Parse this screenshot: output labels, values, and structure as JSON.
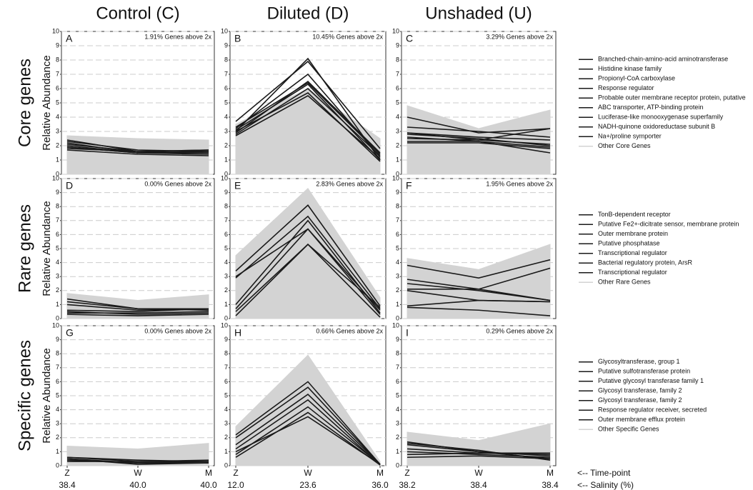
{
  "chart_data": {
    "type": "line",
    "ylabel": "Relative Abundance",
    "ylim": [
      0,
      10
    ],
    "yticks": [
      0,
      1,
      2,
      3,
      4,
      5,
      6,
      7,
      8,
      9,
      10
    ],
    "grid": true,
    "line_color": "#1a1a1a",
    "other_color": "#d3d3d3",
    "time_points": [
      "Z",
      "W",
      "M"
    ],
    "time_label": "<-- Time-point",
    "salinity_label": "<-- Salinity (%)",
    "columns": [
      {
        "title": "Control (C)",
        "salinity": [
          "38.4",
          "40.0",
          "40.0"
        ]
      },
      {
        "title": "Diluted (D)",
        "salinity": [
          "12.0",
          "23.6",
          "36.0"
        ]
      },
      {
        "title": "Unshaded (U)",
        "salinity": [
          "38.2",
          "38.4",
          "38.4"
        ]
      }
    ],
    "rows": [
      {
        "label": "Core genes",
        "legend": [
          "Branched-chain-amino-acid aminotransferase",
          "Histidine kinase family",
          "Propionyl-CoA carboxylase",
          "Response regulator",
          "Probable outer membrane receptor protein, putative",
          "ABC transporter, ATP-binding protein",
          "Luciferase-like monooxygenase superfamily",
          "NADH-quinone oxidoreductase subunit B",
          "Na+/proline symporter"
        ],
        "other_name": "Other Core Genes",
        "panels": [
          {
            "letter": "A",
            "annotation": "1.91% Genes above 2x",
            "other": [
              2.7,
              2.5,
              2.4
            ],
            "lines": [
              [
                2.4,
                1.6,
                1.7
              ],
              [
                2.2,
                1.5,
                1.6
              ],
              [
                2.0,
                1.5,
                1.5
              ],
              [
                1.9,
                1.5,
                1.4
              ],
              [
                1.8,
                1.6,
                1.7
              ],
              [
                2.3,
                1.7,
                1.6
              ],
              [
                1.7,
                1.4,
                1.3
              ],
              [
                2.1,
                1.6,
                1.5
              ],
              [
                1.9,
                1.5,
                1.6
              ]
            ]
          },
          {
            "letter": "B",
            "annotation": "10.45% Genes above 2x",
            "other": [
              3.5,
              6.0,
              2.5
            ],
            "lines": [
              [
                3.0,
                8.1,
                1.0
              ],
              [
                3.7,
                7.9,
                1.8
              ],
              [
                3.2,
                7.0,
                1.2
              ],
              [
                2.9,
                6.5,
                1.5
              ],
              [
                3.1,
                6.3,
                1.0
              ],
              [
                2.8,
                6.0,
                1.3
              ],
              [
                3.0,
                5.7,
                0.9
              ],
              [
                2.7,
                5.5,
                1.1
              ],
              [
                3.3,
                6.4,
                1.4
              ]
            ]
          },
          {
            "letter": "C",
            "annotation": "3.29% Genes above 2x",
            "other": [
              4.8,
              3.2,
              4.5
            ],
            "lines": [
              [
                4.0,
                2.9,
                3.2
              ],
              [
                3.3,
                3.0,
                2.6
              ],
              [
                2.9,
                2.4,
                3.2
              ],
              [
                2.8,
                2.5,
                2.0
              ],
              [
                2.6,
                2.3,
                1.5
              ],
              [
                2.3,
                2.3,
                1.9
              ],
              [
                2.2,
                2.2,
                1.8
              ],
              [
                2.9,
                2.6,
                2.4
              ],
              [
                2.5,
                2.4,
                2.1
              ]
            ]
          }
        ]
      },
      {
        "label": "Rare genes",
        "legend": [
          "TonB-dependent receptor",
          "Putative Fe2+-dicitrate sensor, membrane protein",
          "Outer membrane protein",
          "Putative phosphatase",
          "Transcriptional regulator",
          "Bacterial regulatory protein, ArsR",
          "Transcriptional regulator"
        ],
        "other_name": "Other Rare Genes",
        "panels": [
          {
            "letter": "D",
            "annotation": "0.00% Genes above 2x",
            "other": [
              1.8,
              1.3,
              1.7
            ],
            "lines": [
              [
                1.4,
                0.7,
                0.7
              ],
              [
                1.0,
                0.6,
                0.7
              ],
              [
                0.6,
                0.5,
                0.7
              ],
              [
                0.5,
                0.3,
                0.4
              ],
              [
                0.4,
                0.4,
                0.5
              ],
              [
                0.3,
                0.2,
                0.3
              ],
              [
                1.2,
                0.7,
                0.6
              ]
            ]
          },
          {
            "letter": "E",
            "annotation": "2.83% Genes above 2x",
            "other": [
              4.5,
              9.3,
              1.5
            ],
            "lines": [
              [
                3.4,
                8.1,
                0.9
              ],
              [
                2.9,
                7.3,
                0.7
              ],
              [
                1.0,
                7.0,
                0.4
              ],
              [
                0.7,
                6.4,
                0.6
              ],
              [
                3.0,
                6.4,
                0.3
              ],
              [
                0.2,
                5.3,
                0.1
              ],
              [
                0.5,
                5.3,
                0.8
              ]
            ]
          },
          {
            "letter": "F",
            "annotation": "1.95% Genes above 2x",
            "other": [
              4.3,
              3.5,
              5.3
            ],
            "lines": [
              [
                3.8,
                2.9,
                4.2
              ],
              [
                2.8,
                2.1,
                1.3
              ],
              [
                2.1,
                2.1,
                3.6
              ],
              [
                2.0,
                1.3,
                1.2
              ],
              [
                2.5,
                2.0,
                1.3
              ],
              [
                0.9,
                1.3,
                1.2
              ],
              [
                0.8,
                0.6,
                0.2
              ]
            ]
          }
        ]
      },
      {
        "label": "Specific genes",
        "legend": [
          "Glycosyltransferase, group 1",
          "Putative sulfotransferase protein",
          "Putative glycosyl transferase family 1",
          "Glycosyl transferase, family 2",
          "Glycosyl transferase, family 2",
          "Response regulator receiver, secreted",
          "Outer membrane efflux protein"
        ],
        "other_name": "Other Specific Genes",
        "panels": [
          {
            "letter": "G",
            "annotation": "0.00% Genes above 2x",
            "other": [
              1.4,
              1.2,
              1.6
            ],
            "lines": [
              [
                0.6,
                0.3,
                0.3
              ],
              [
                0.5,
                0.2,
                0.3
              ],
              [
                0.4,
                0.2,
                0.2
              ],
              [
                0.3,
                0.3,
                0.4
              ],
              [
                0.5,
                0.1,
                0.2
              ],
              [
                0.6,
                0.4,
                0.3
              ],
              [
                0.4,
                0.2,
                0.2
              ]
            ]
          },
          {
            "letter": "H",
            "annotation": "0.66% Genes above 2x",
            "other": [
              2.8,
              7.9,
              0.3
            ],
            "lines": [
              [
                2.2,
                6.0,
                0.1
              ],
              [
                2.0,
                5.6,
                0.1
              ],
              [
                1.5,
                5.1,
                0.1
              ],
              [
                1.2,
                4.7,
                0.05
              ],
              [
                0.8,
                4.2,
                0.1
              ],
              [
                0.6,
                3.8,
                0.05
              ],
              [
                1.0,
                3.5,
                0.1
              ]
            ]
          },
          {
            "letter": "I",
            "annotation": "0.29% Genes above 2x",
            "other": [
              2.4,
              1.8,
              3.0
            ],
            "lines": [
              [
                1.7,
                1.0,
                0.5
              ],
              [
                1.5,
                1.0,
                0.7
              ],
              [
                1.2,
                0.9,
                0.9
              ],
              [
                1.0,
                0.8,
                0.6
              ],
              [
                0.8,
                0.9,
                0.8
              ],
              [
                0.6,
                0.7,
                0.5
              ],
              [
                1.6,
                1.1,
                0.4
              ]
            ]
          }
        ]
      }
    ]
  }
}
